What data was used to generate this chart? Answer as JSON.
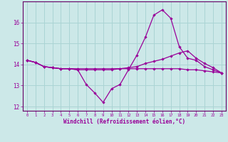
{
  "xlabel": "Windchill (Refroidissement éolien,°C)",
  "background_color": "#cce8e8",
  "grid_color": "#aad4d4",
  "line_color": "#990099",
  "spine_color": "#660066",
  "x_values": [
    0,
    1,
    2,
    3,
    4,
    5,
    6,
    7,
    8,
    9,
    10,
    11,
    12,
    13,
    14,
    15,
    16,
    17,
    18,
    19,
    20,
    21,
    22,
    23
  ],
  "series1": [
    14.2,
    14.1,
    13.9,
    13.85,
    13.8,
    13.8,
    13.75,
    13.05,
    12.65,
    12.2,
    12.85,
    13.05,
    13.75,
    14.45,
    15.3,
    16.35,
    16.6,
    16.2,
    14.85,
    14.3,
    14.2,
    13.9,
    13.75,
    13.6
  ],
  "series2": [
    14.2,
    14.1,
    13.9,
    13.85,
    13.8,
    13.8,
    13.75,
    13.75,
    13.75,
    13.75,
    13.75,
    13.8,
    13.85,
    13.9,
    14.05,
    14.15,
    14.25,
    14.4,
    14.55,
    14.65,
    14.3,
    14.05,
    13.85,
    13.6
  ],
  "series3": [
    14.2,
    14.1,
    13.9,
    13.85,
    13.8,
    13.8,
    13.8,
    13.8,
    13.8,
    13.8,
    13.8,
    13.8,
    13.8,
    13.8,
    13.8,
    13.8,
    13.8,
    13.8,
    13.8,
    13.75,
    13.75,
    13.7,
    13.65,
    13.6
  ],
  "ylim": [
    11.8,
    17.0
  ],
  "xlim": [
    -0.5,
    23.5
  ],
  "yticks": [
    12,
    13,
    14,
    15,
    16
  ],
  "xticks": [
    0,
    1,
    2,
    3,
    4,
    5,
    6,
    7,
    8,
    9,
    10,
    11,
    12,
    13,
    14,
    15,
    16,
    17,
    18,
    19,
    20,
    21,
    22,
    23
  ]
}
